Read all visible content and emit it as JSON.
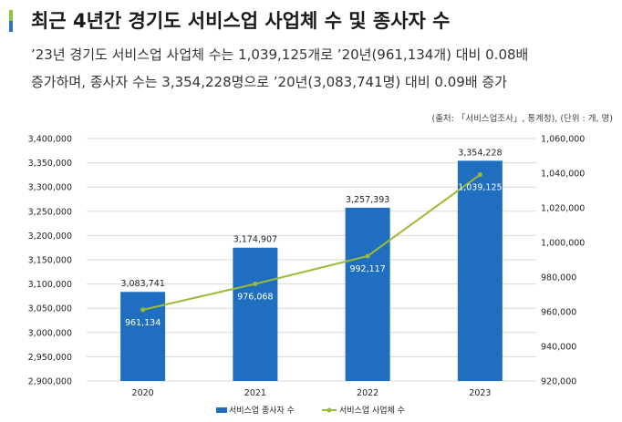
{
  "header": {
    "title": "최근 4년간 경기도 서비스업 사업체 수 및 종사자 수",
    "summary_line1": "’23년 경기도 서비스업 사업체 수는 1,039,125개로 ’20년(961,134개) 대비 0.08배",
    "summary_line2": "증가하며, 종사자 수는 3,354,228명으로 ’20년(3,083,741명) 대비 0.09배 증가",
    "source": "(출처: 「서비스업조사」, 통계청), (단위 : 개, 명)"
  },
  "colors": {
    "accent_top": "#8dc63f",
    "accent_bottom": "#2e75b6",
    "bar": "#1f6ebf",
    "line": "#9bbb35",
    "gridline": "#d9d9d9",
    "text": "#222222"
  },
  "chart_data": {
    "type": "bar",
    "categories": [
      "2020",
      "2021",
      "2022",
      "2023"
    ],
    "series": [
      {
        "name": "서비스업 종사자 수",
        "type": "bar",
        "axis": "left",
        "values": [
          3083741,
          3174907,
          3257393,
          3354228
        ],
        "labels": [
          "3,083,741",
          "3,174,907",
          "3,257,393",
          "3,354,228"
        ]
      },
      {
        "name": "서비스업 사업체 수",
        "type": "line",
        "axis": "right",
        "values": [
          961134,
          976068,
          992117,
          1039125
        ],
        "labels": [
          "961,134",
          "976,068",
          "992,117",
          "1,039,125"
        ]
      }
    ],
    "y_left": {
      "min": 2900000,
      "max": 3400000,
      "ticks": [
        "2,900,000",
        "2,950,000",
        "3,000,000",
        "3,050,000",
        "3,100,000",
        "3,150,000",
        "3,200,000",
        "3,250,000",
        "3,300,000",
        "3,350,000",
        "3,400,000"
      ]
    },
    "y_right": {
      "min": 920000,
      "max": 1060000,
      "ticks": [
        "920,000",
        "940,000",
        "960,000",
        "980,000",
        "1,000,000",
        "1,020,000",
        "1,040,000",
        "1,060,000"
      ]
    },
    "grid": true,
    "legend_position": "bottom"
  }
}
